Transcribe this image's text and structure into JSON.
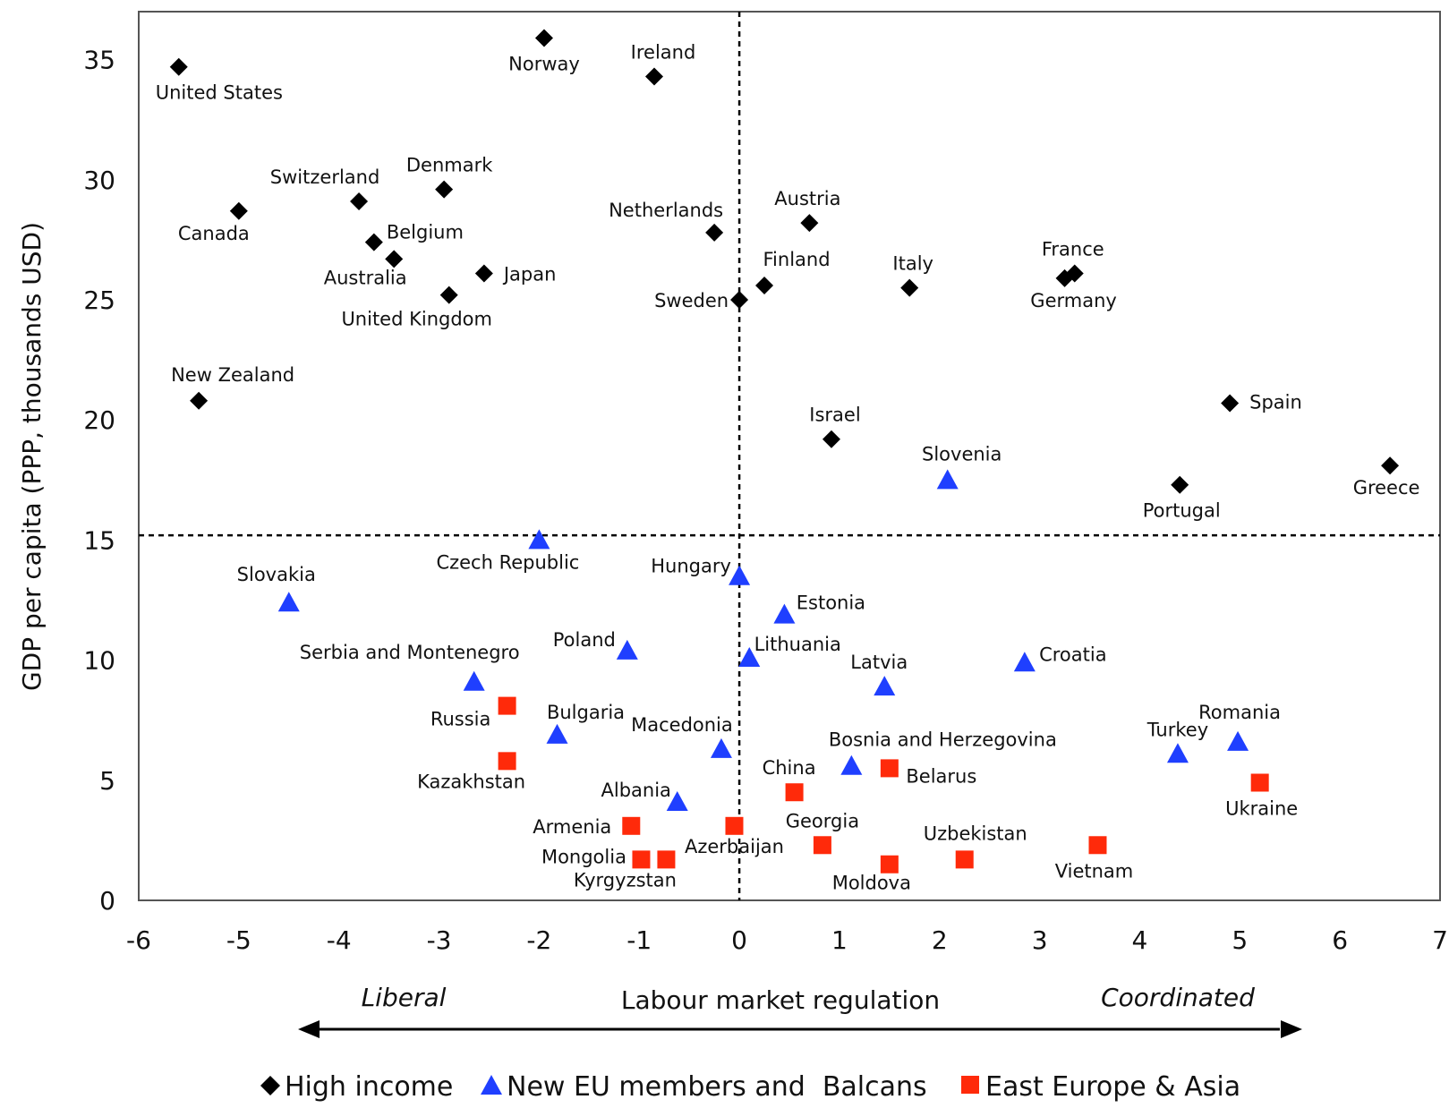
{
  "chart_data": {
    "type": "scatter",
    "title": "",
    "xlabel": "Labour market regulation",
    "ylabel": "GDP per capita (PPP, thousands USD)",
    "xlim": [
      -6,
      7
    ],
    "ylim": [
      0,
      37
    ],
    "x_ticks": [
      "-6",
      "-5",
      "-4",
      "-3",
      "-2",
      "-1",
      "0",
      "1",
      "2",
      "3",
      "4",
      "5",
      "6",
      "7"
    ],
    "y_ticks": [
      "0",
      "5",
      "10",
      "15",
      "20",
      "25",
      "30",
      "35"
    ],
    "reference_lines": {
      "x": 0,
      "y": 15.2
    },
    "direction_labels": {
      "left": "Liberal",
      "right": "Coordinated"
    },
    "grid": false,
    "legend_position": "bottom",
    "colors": {
      "High income": "#000000",
      "New EU members and  Balcans": "#1f3fff",
      "East Europe & Asia": "#ff2a0a"
    },
    "series": [
      {
        "name": "High income",
        "marker": "diamond",
        "points": [
          {
            "label": "United States",
            "x": -5.6,
            "y": 34.7
          },
          {
            "label": "Norway",
            "x": -1.95,
            "y": 35.9
          },
          {
            "label": "Ireland",
            "x": -0.85,
            "y": 34.3
          },
          {
            "label": "Canada",
            "x": -5.0,
            "y": 28.7
          },
          {
            "label": "Switzerland",
            "x": -3.8,
            "y": 29.1
          },
          {
            "label": "Denmark",
            "x": -2.95,
            "y": 29.6
          },
          {
            "label": "Belgium",
            "x": -3.65,
            "y": 27.4
          },
          {
            "label": "Australia",
            "x": -3.45,
            "y": 26.7
          },
          {
            "label": "Japan",
            "x": -2.55,
            "y": 26.1
          },
          {
            "label": "United Kingdom",
            "x": -2.9,
            "y": 25.2
          },
          {
            "label": "Netherlands",
            "x": -0.25,
            "y": 27.8
          },
          {
            "label": "Austria",
            "x": 0.7,
            "y": 28.2
          },
          {
            "label": "Finland",
            "x": 0.25,
            "y": 25.6
          },
          {
            "label": "Sweden",
            "x": 0.0,
            "y": 25.0
          },
          {
            "label": "Italy",
            "x": 1.7,
            "y": 25.5
          },
          {
            "label": "France",
            "x": 3.35,
            "y": 26.1
          },
          {
            "label": "Germany",
            "x": 3.25,
            "y": 25.9
          },
          {
            "label": "New Zealand",
            "x": -5.4,
            "y": 20.8
          },
          {
            "label": "Spain",
            "x": 4.9,
            "y": 20.7
          },
          {
            "label": "Israel",
            "x": 0.92,
            "y": 19.2
          },
          {
            "label": "Portugal",
            "x": 4.4,
            "y": 17.3
          },
          {
            "label": "Greece",
            "x": 6.5,
            "y": 18.1
          }
        ]
      },
      {
        "name": "New EU members and  Balcans",
        "marker": "triangle",
        "points": [
          {
            "label": "Slovenia",
            "x": 2.08,
            "y": 17.5
          },
          {
            "label": "Czech Republic",
            "x": -2.0,
            "y": 15.0
          },
          {
            "label": "Slovakia",
            "x": -4.5,
            "y": 12.4
          },
          {
            "label": "Hungary",
            "x": 0.0,
            "y": 13.5
          },
          {
            "label": "Estonia",
            "x": 0.45,
            "y": 11.9
          },
          {
            "label": "Poland",
            "x": -1.12,
            "y": 10.4
          },
          {
            "label": "Lithuania",
            "x": 0.1,
            "y": 10.1
          },
          {
            "label": "Latvia",
            "x": 1.45,
            "y": 8.9
          },
          {
            "label": "Croatia",
            "x": 2.85,
            "y": 9.9
          },
          {
            "label": "Serbia and Montenegro",
            "x": -2.65,
            "y": 9.1
          },
          {
            "label": "Bulgaria",
            "x": -1.82,
            "y": 6.9
          },
          {
            "label": "Macedonia",
            "x": -0.18,
            "y": 6.3
          },
          {
            "label": "Bosnia and Herzegovina",
            "x": 1.12,
            "y": 5.6
          },
          {
            "label": "Albania",
            "x": -0.62,
            "y": 4.1
          },
          {
            "label": "Turkey",
            "x": 4.38,
            "y": 6.1
          },
          {
            "label": "Romania",
            "x": 4.98,
            "y": 6.6
          }
        ]
      },
      {
        "name": "East Europe & Asia",
        "marker": "square",
        "points": [
          {
            "label": "Russia",
            "x": -2.32,
            "y": 8.1
          },
          {
            "label": "Kazakhstan",
            "x": -2.32,
            "y": 5.8
          },
          {
            "label": "Armenia",
            "x": -1.08,
            "y": 3.1
          },
          {
            "label": "Mongolia",
            "x": -0.98,
            "y": 1.7
          },
          {
            "label": "Kyrgyzstan",
            "x": -0.73,
            "y": 1.7
          },
          {
            "label": "Azerbaijan",
            "x": -0.05,
            "y": 3.1
          },
          {
            "label": "China",
            "x": 0.55,
            "y": 4.5
          },
          {
            "label": "Georgia",
            "x": 0.83,
            "y": 2.3
          },
          {
            "label": "Belarus",
            "x": 1.5,
            "y": 5.5
          },
          {
            "label": "Moldova",
            "x": 1.5,
            "y": 1.5
          },
          {
            "label": "Uzbekistan",
            "x": 2.25,
            "y": 1.7
          },
          {
            "label": "Vietnam",
            "x": 3.58,
            "y": 2.3
          },
          {
            "label": "Ukraine",
            "x": 5.2,
            "y": 4.9
          }
        ]
      }
    ]
  }
}
